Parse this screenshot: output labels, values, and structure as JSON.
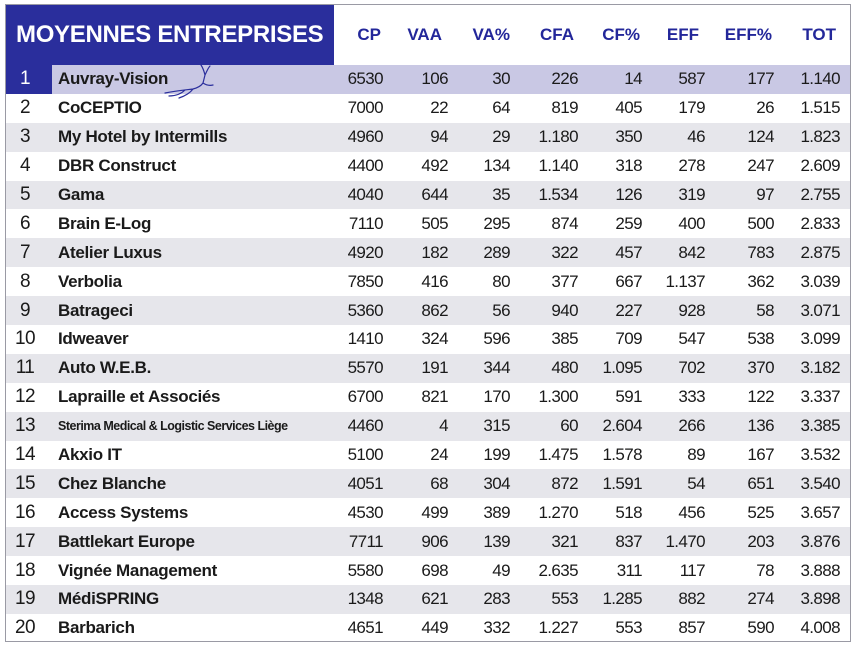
{
  "title": "MOYENNES ENTREPRISES",
  "columns": [
    "CP",
    "VAA",
    "VA%",
    "CFA",
    "CF%",
    "EFF",
    "EFF%",
    "TOT"
  ],
  "rows": [
    {
      "rank": "1",
      "name": "Auvray-Vision",
      "values": [
        "6530",
        "106",
        "30",
        "226",
        "14",
        "587",
        "177",
        "1.140"
      ]
    },
    {
      "rank": "2",
      "name": "CoCEPTIO",
      "values": [
        "7000",
        "22",
        "64",
        "819",
        "405",
        "179",
        "26",
        "1.515"
      ]
    },
    {
      "rank": "3",
      "name": "My Hotel by Intermills",
      "values": [
        "4960",
        "94",
        "29",
        "1.180",
        "350",
        "46",
        "124",
        "1.823"
      ]
    },
    {
      "rank": "4",
      "name": "DBR Construct",
      "values": [
        "4400",
        "492",
        "134",
        "1.140",
        "318",
        "278",
        "247",
        "2.609"
      ]
    },
    {
      "rank": "5",
      "name": "Gama",
      "values": [
        "4040",
        "644",
        "35",
        "1.534",
        "126",
        "319",
        "97",
        "2.755"
      ]
    },
    {
      "rank": "6",
      "name": "Brain E-Log",
      "values": [
        "7110",
        "505",
        "295",
        "874",
        "259",
        "400",
        "500",
        "2.833"
      ]
    },
    {
      "rank": "7",
      "name": "Atelier Luxus",
      "values": [
        "4920",
        "182",
        "289",
        "322",
        "457",
        "842",
        "783",
        "2.875"
      ]
    },
    {
      "rank": "8",
      "name": "Verbolia",
      "values": [
        "7850",
        "416",
        "80",
        "377",
        "667",
        "1.137",
        "362",
        "3.039"
      ]
    },
    {
      "rank": "9",
      "name": "Batrageci",
      "values": [
        "5360",
        "862",
        "56",
        "940",
        "227",
        "928",
        "58",
        "3.071"
      ]
    },
    {
      "rank": "10",
      "name": "Idweaver",
      "values": [
        "1410",
        "324",
        "596",
        "385",
        "709",
        "547",
        "538",
        "3.099"
      ]
    },
    {
      "rank": "11",
      "name": "Auto W.E.B.",
      "values": [
        "5570",
        "191",
        "344",
        "480",
        "1.095",
        "702",
        "370",
        "3.182"
      ]
    },
    {
      "rank": "12",
      "name": "Lapraille et Associés",
      "values": [
        "6700",
        "821",
        "170",
        "1.300",
        "591",
        "333",
        "122",
        "3.337"
      ]
    },
    {
      "rank": "13",
      "name": "Sterima Medical & Logistic Services Liège",
      "values": [
        "4460",
        "4",
        "315",
        "60",
        "2.604",
        "266",
        "136",
        "3.385"
      ]
    },
    {
      "rank": "14",
      "name": "Akxio IT",
      "values": [
        "5100",
        "24",
        "199",
        "1.475",
        "1.578",
        "89",
        "167",
        "3.532"
      ]
    },
    {
      "rank": "15",
      "name": "Chez Blanche",
      "values": [
        "4051",
        "68",
        "304",
        "872",
        "1.591",
        "54",
        "651",
        "3.540"
      ]
    },
    {
      "rank": "16",
      "name": "Access Systems",
      "values": [
        "4530",
        "499",
        "389",
        "1.270",
        "518",
        "456",
        "525",
        "3.657"
      ]
    },
    {
      "rank": "17",
      "name": "Battlekart Europe",
      "values": [
        "7711",
        "906",
        "139",
        "321",
        "837",
        "1.470",
        "203",
        "3.876"
      ]
    },
    {
      "rank": "18",
      "name": "Vignée Management",
      "values": [
        "5580",
        "698",
        "49",
        "2.635",
        "311",
        "117",
        "78",
        "3.888"
      ]
    },
    {
      "rank": "19",
      "name": "MédiSPRING",
      "values": [
        "1348",
        "621",
        "283",
        "553",
        "1.285",
        "882",
        "274",
        "3.898"
      ]
    },
    {
      "rank": "20",
      "name": "Barbarich",
      "values": [
        "4651",
        "449",
        "332",
        "1.227",
        "553",
        "857",
        "590",
        "4.008"
      ]
    }
  ],
  "colors": {
    "header_blue": "#2a2e9c",
    "stripe": "#e6e6eb",
    "highlight": "#c9c8e4"
  },
  "decorations": [
    "antelope-logo"
  ]
}
